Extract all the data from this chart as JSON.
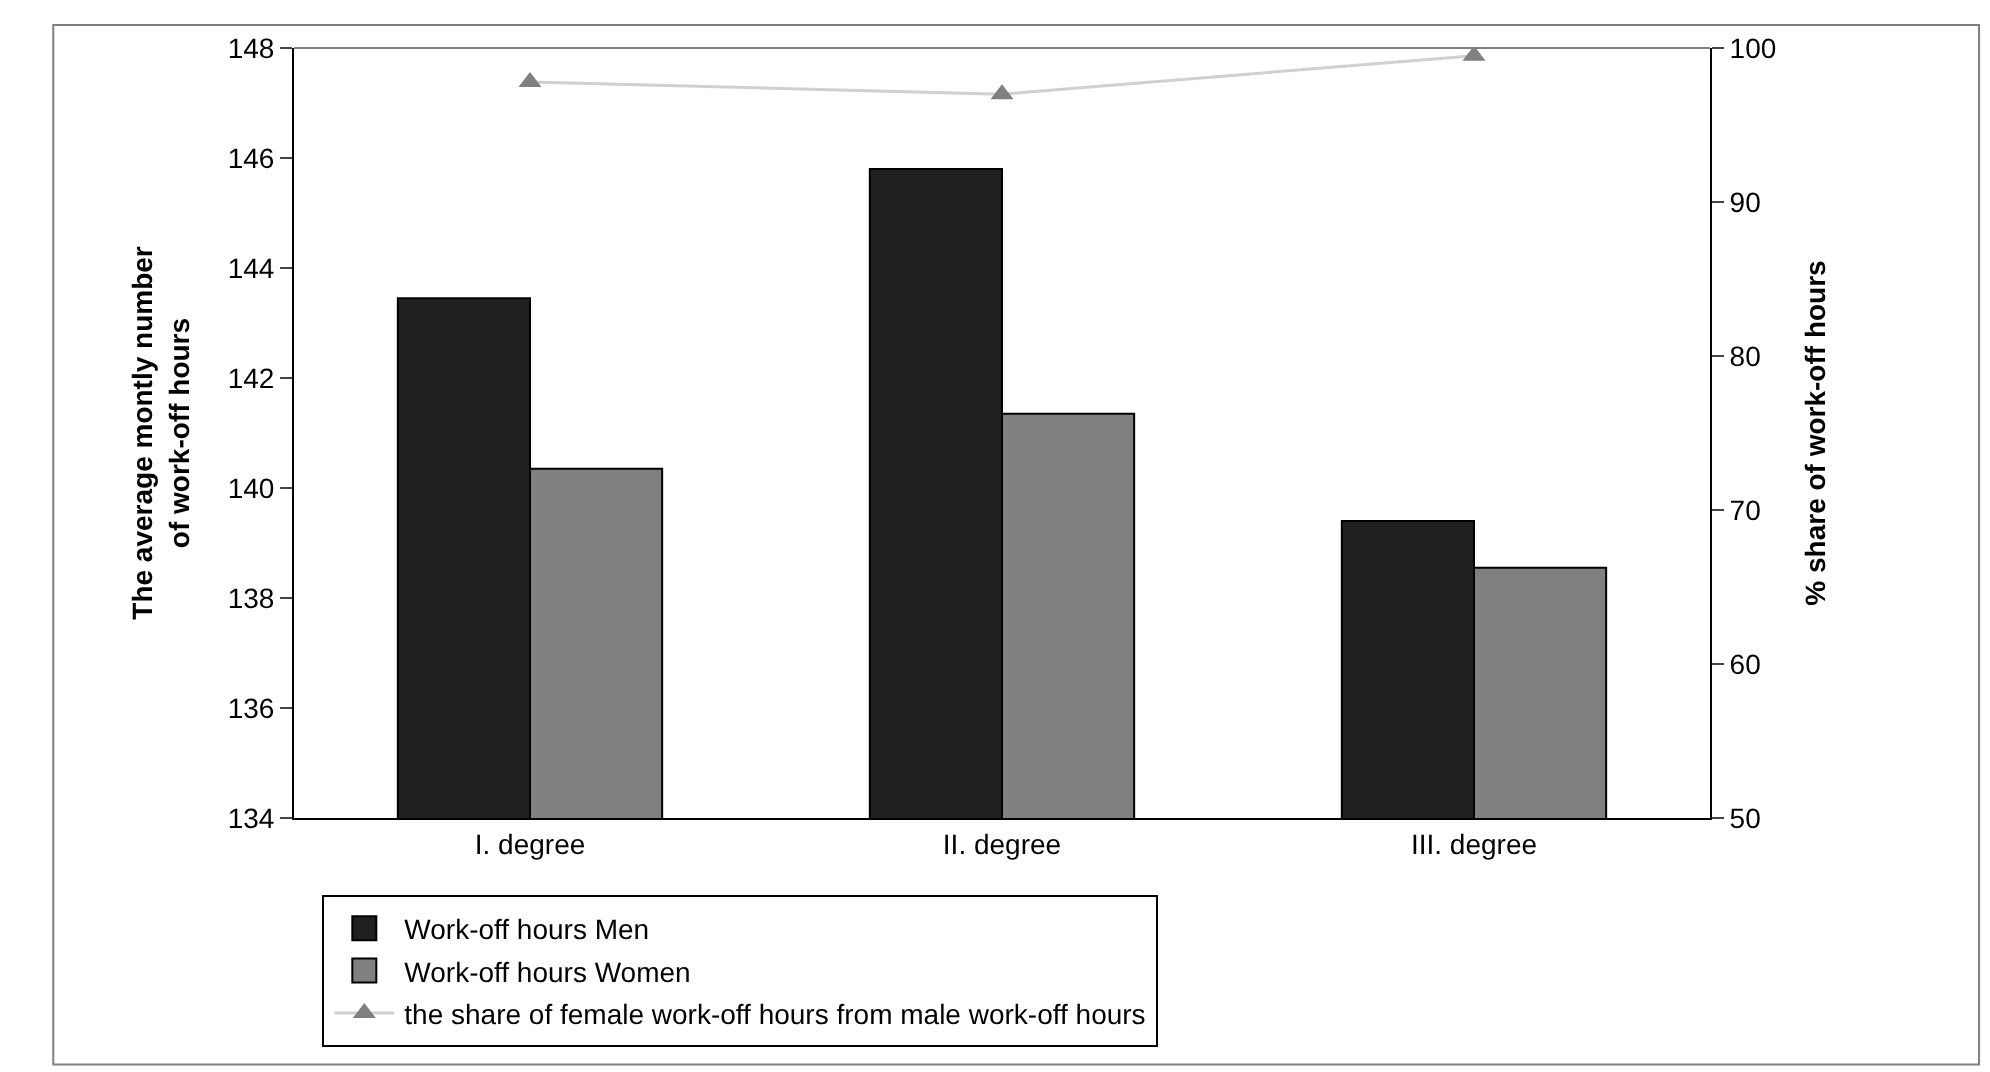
{
  "chart_data": {
    "type": "bar",
    "ylabel": "The average montly number\nof work-off hours",
    "y2label": "% share of work-off hours",
    "categories": [
      "I. degree",
      "II. degree",
      "III. degree"
    ],
    "series": [
      {
        "name": "Work-off hours Men",
        "color": "#202020",
        "values": [
          143.45,
          145.8,
          139.4
        ]
      },
      {
        "name": "Work-off hours Women",
        "color": "#808080",
        "values": [
          140.35,
          141.35,
          138.55
        ]
      },
      {
        "name": "the share of female work-off hours from male work-off hours",
        "color": "#d0d0d0",
        "type": "line",
        "axis": "y2",
        "marker": "triangle",
        "values": [
          97.8,
          97.0,
          99.5
        ]
      }
    ],
    "ylim": [
      134,
      148
    ],
    "yticks": [
      134,
      136,
      138,
      140,
      142,
      144,
      146,
      148
    ],
    "y2lim": [
      50,
      100
    ],
    "y2ticks": [
      50,
      60,
      70,
      80,
      90,
      100
    ],
    "legend": "bottom"
  }
}
